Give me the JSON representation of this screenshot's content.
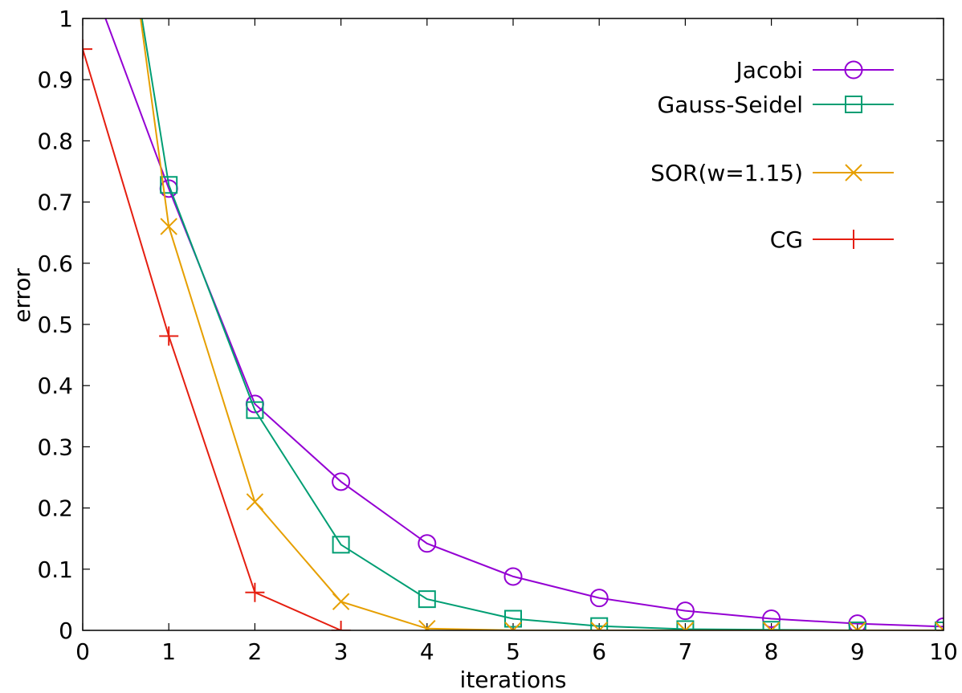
{
  "chart_data": {
    "type": "line",
    "title": "",
    "xlabel": "iterations",
    "ylabel": "error",
    "xlim": [
      0,
      10
    ],
    "ylim": [
      0,
      1
    ],
    "x_ticks": [
      "0",
      "1",
      "2",
      "3",
      "4",
      "5",
      "6",
      "7",
      "8",
      "9",
      "10"
    ],
    "y_ticks": [
      "0",
      "0.1",
      "0.2",
      "0.3",
      "0.4",
      "0.5",
      "0.6",
      "0.7",
      "0.8",
      "0.9",
      "1"
    ],
    "grid": false,
    "legend_position": "top-right",
    "series": [
      {
        "name": "Jacobi",
        "color": "#9400d3",
        "marker": "circle",
        "x": [
          0,
          1,
          2,
          3,
          4,
          5,
          6,
          7,
          8,
          9,
          10
        ],
        "y": [
          1.1,
          0.722,
          0.37,
          0.243,
          0.142,
          0.088,
          0.053,
          0.032,
          0.019,
          0.011,
          0.006
        ]
      },
      {
        "name": "Gauss-Seidel",
        "color": "#009e73",
        "marker": "square",
        "x": [
          0,
          1,
          2,
          3,
          4,
          5,
          6,
          7,
          8,
          9,
          10
        ],
        "y": [
          1.6,
          0.728,
          0.36,
          0.14,
          0.051,
          0.019,
          0.007,
          0.002,
          0.001,
          0.0,
          0.0
        ]
      },
      {
        "name": "SOR(w=1.15)",
        "color": "#e69f00",
        "marker": "x",
        "x": [
          0,
          1,
          2,
          3,
          4,
          5,
          6,
          7,
          8,
          9,
          10
        ],
        "y": [
          1.7,
          0.66,
          0.21,
          0.047,
          0.003,
          0.0,
          0.0,
          0.0,
          0.0,
          0.0,
          0.0
        ]
      },
      {
        "name": "CG",
        "color": "#e51e10",
        "marker": "plus",
        "x": [
          0,
          1,
          2,
          3
        ],
        "y": [
          0.95,
          0.481,
          0.062,
          0.0
        ]
      }
    ]
  }
}
